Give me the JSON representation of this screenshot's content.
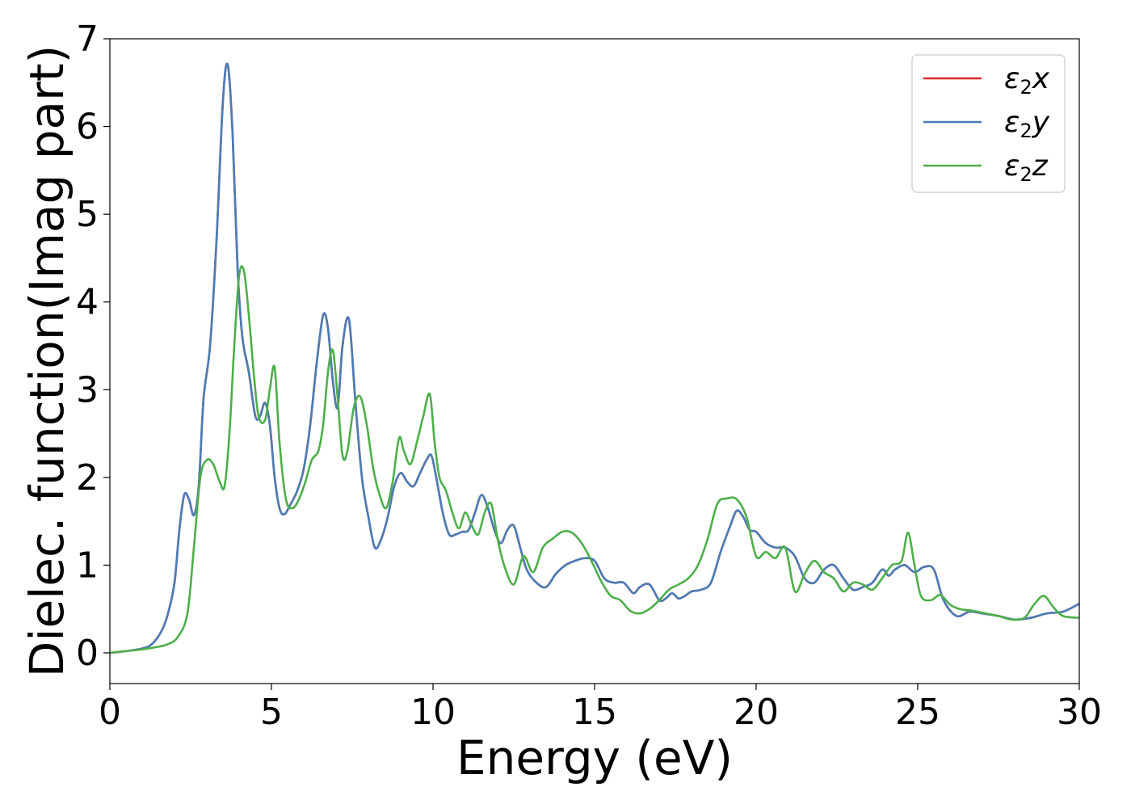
{
  "chart_data": {
    "type": "line",
    "xlabel": "Energy (eV)",
    "ylabel": "Dielec. function(Imag part)",
    "xlim": [
      0,
      30
    ],
    "ylim": [
      -0.35,
      7
    ],
    "xticks": [
      0,
      5,
      10,
      15,
      20,
      25,
      30
    ],
    "yticks": [
      0,
      1,
      2,
      3,
      4,
      5,
      6,
      7
    ],
    "grid": false,
    "legend_position": "top-right",
    "series": [
      {
        "name": "ε2x",
        "legend_main": "ε",
        "legend_sub": "2",
        "legend_var": "x",
        "color": "#d62728",
        "x": [
          0,
          0.5,
          1,
          1.3,
          1.6,
          1.8,
          2,
          2.15,
          2.3,
          2.45,
          2.6,
          2.75,
          2.9,
          3.1,
          3.3,
          3.5,
          3.65,
          3.8,
          3.95,
          4.1,
          4.3,
          4.5,
          4.65,
          4.8,
          4.95,
          5.1,
          5.25,
          5.4,
          5.6,
          5.8,
          6,
          6.2,
          6.4,
          6.6,
          6.75,
          6.9,
          7.05,
          7.2,
          7.4,
          7.6,
          7.8,
          8,
          8.2,
          8.4,
          8.6,
          8.8,
          9,
          9.2,
          9.4,
          9.6,
          9.8,
          9.95,
          10.1,
          10.3,
          10.5,
          10.7,
          10.9,
          11.1,
          11.3,
          11.5,
          11.7,
          11.9,
          12.1,
          12.3,
          12.5,
          12.7,
          12.9,
          13.2,
          13.5,
          13.8,
          14.1,
          14.4,
          14.7,
          15,
          15.3,
          15.6,
          15.9,
          16.2,
          16.4,
          16.7,
          17,
          17.2,
          17.4,
          17.6,
          17.8,
          18,
          18.3,
          18.6,
          18.9,
          19.2,
          19.4,
          19.6,
          19.8,
          20,
          20.3,
          20.6,
          20.9,
          21.2,
          21.5,
          21.8,
          22.1,
          22.4,
          22.7,
          23,
          23.3,
          23.6,
          23.9,
          24.1,
          24.3,
          24.6,
          24.9,
          25.2,
          25.5,
          25.8,
          26.2,
          26.6,
          27,
          27.5,
          28,
          28.5,
          29,
          29.5,
          30
        ],
        "y": [
          0,
          0.02,
          0.05,
          0.1,
          0.25,
          0.45,
          0.8,
          1.4,
          1.8,
          1.75,
          1.57,
          1.9,
          2.9,
          3.5,
          4.7,
          6.3,
          6.7,
          5.9,
          4.4,
          3.6,
          3.2,
          2.7,
          2.7,
          2.85,
          2.6,
          2.0,
          1.65,
          1.58,
          1.7,
          1.85,
          2.1,
          2.6,
          3.3,
          3.85,
          3.7,
          3.1,
          2.8,
          3.5,
          3.8,
          2.85,
          2.0,
          1.55,
          1.2,
          1.3,
          1.55,
          1.9,
          2.05,
          1.95,
          1.9,
          2.05,
          2.2,
          2.25,
          2.0,
          1.6,
          1.35,
          1.35,
          1.38,
          1.4,
          1.6,
          1.8,
          1.65,
          1.4,
          1.25,
          1.4,
          1.45,
          1.2,
          0.95,
          0.8,
          0.75,
          0.9,
          1.0,
          1.05,
          1.08,
          1.05,
          0.85,
          0.8,
          0.8,
          0.68,
          0.75,
          0.78,
          0.6,
          0.62,
          0.68,
          0.62,
          0.65,
          0.7,
          0.72,
          0.8,
          1.15,
          1.45,
          1.62,
          1.55,
          1.4,
          1.38,
          1.25,
          1.2,
          1.2,
          1.1,
          0.85,
          0.8,
          0.95,
          1.0,
          0.85,
          0.72,
          0.75,
          0.8,
          0.95,
          0.88,
          0.95,
          1.0,
          0.92,
          0.98,
          0.95,
          0.6,
          0.42,
          0.47,
          0.45,
          0.42,
          0.38,
          0.4,
          0.45,
          0.47,
          0.56
        ]
      },
      {
        "name": "ε2y",
        "legend_main": "ε",
        "legend_sub": "2",
        "legend_var": "y",
        "color": "#4a7db7",
        "x": [
          0,
          0.5,
          1,
          1.3,
          1.6,
          1.8,
          2,
          2.15,
          2.3,
          2.45,
          2.6,
          2.75,
          2.9,
          3.1,
          3.3,
          3.5,
          3.65,
          3.8,
          3.95,
          4.1,
          4.3,
          4.5,
          4.65,
          4.8,
          4.95,
          5.1,
          5.25,
          5.4,
          5.6,
          5.8,
          6,
          6.2,
          6.4,
          6.6,
          6.75,
          6.9,
          7.05,
          7.2,
          7.4,
          7.6,
          7.8,
          8,
          8.2,
          8.4,
          8.6,
          8.8,
          9,
          9.2,
          9.4,
          9.6,
          9.8,
          9.95,
          10.1,
          10.3,
          10.5,
          10.7,
          10.9,
          11.1,
          11.3,
          11.5,
          11.7,
          11.9,
          12.1,
          12.3,
          12.5,
          12.7,
          12.9,
          13.2,
          13.5,
          13.8,
          14.1,
          14.4,
          14.7,
          15,
          15.3,
          15.6,
          15.9,
          16.2,
          16.4,
          16.7,
          17,
          17.2,
          17.4,
          17.6,
          17.8,
          18,
          18.3,
          18.6,
          18.9,
          19.2,
          19.4,
          19.6,
          19.8,
          20,
          20.3,
          20.6,
          20.9,
          21.2,
          21.5,
          21.8,
          22.1,
          22.4,
          22.7,
          23,
          23.3,
          23.6,
          23.9,
          24.1,
          24.3,
          24.6,
          24.9,
          25.2,
          25.5,
          25.8,
          26.2,
          26.6,
          27,
          27.5,
          28,
          28.5,
          29,
          29.5,
          30
        ],
        "y": [
          0,
          0.02,
          0.05,
          0.1,
          0.25,
          0.45,
          0.8,
          1.4,
          1.8,
          1.75,
          1.57,
          1.9,
          2.9,
          3.5,
          4.7,
          6.3,
          6.7,
          5.9,
          4.4,
          3.6,
          3.2,
          2.7,
          2.7,
          2.85,
          2.6,
          2.0,
          1.65,
          1.58,
          1.7,
          1.85,
          2.1,
          2.6,
          3.3,
          3.85,
          3.7,
          3.1,
          2.8,
          3.5,
          3.8,
          2.85,
          2.0,
          1.55,
          1.2,
          1.3,
          1.55,
          1.9,
          2.05,
          1.95,
          1.9,
          2.05,
          2.2,
          2.25,
          2.0,
          1.6,
          1.35,
          1.35,
          1.38,
          1.4,
          1.6,
          1.8,
          1.65,
          1.4,
          1.25,
          1.4,
          1.45,
          1.2,
          0.95,
          0.8,
          0.75,
          0.9,
          1.0,
          1.05,
          1.08,
          1.05,
          0.85,
          0.8,
          0.8,
          0.68,
          0.75,
          0.78,
          0.6,
          0.62,
          0.68,
          0.62,
          0.65,
          0.7,
          0.72,
          0.8,
          1.15,
          1.45,
          1.62,
          1.55,
          1.4,
          1.38,
          1.25,
          1.2,
          1.2,
          1.1,
          0.85,
          0.8,
          0.95,
          1.0,
          0.85,
          0.72,
          0.75,
          0.8,
          0.95,
          0.88,
          0.95,
          1.0,
          0.92,
          0.98,
          0.95,
          0.6,
          0.42,
          0.47,
          0.45,
          0.42,
          0.38,
          0.4,
          0.45,
          0.47,
          0.56
        ]
      },
      {
        "name": "ε2z",
        "legend_main": "ε",
        "legend_sub": "2",
        "legend_var": "z",
        "color": "#4daf4a",
        "x": [
          0,
          0.5,
          1,
          1.5,
          1.8,
          2.1,
          2.4,
          2.6,
          2.8,
          3,
          3.2,
          3.4,
          3.55,
          3.7,
          3.85,
          4,
          4.15,
          4.3,
          4.45,
          4.6,
          4.8,
          4.95,
          5.1,
          5.25,
          5.45,
          5.65,
          5.85,
          6.05,
          6.25,
          6.45,
          6.6,
          6.75,
          6.9,
          7.05,
          7.2,
          7.35,
          7.55,
          7.75,
          7.95,
          8.15,
          8.35,
          8.55,
          8.75,
          8.95,
          9.1,
          9.3,
          9.5,
          9.7,
          9.9,
          10.05,
          10.2,
          10.4,
          10.6,
          10.8,
          11,
          11.2,
          11.4,
          11.6,
          11.8,
          12,
          12.2,
          12.5,
          12.8,
          13.1,
          13.4,
          13.7,
          14,
          14.3,
          14.6,
          14.9,
          15.2,
          15.5,
          15.8,
          16.1,
          16.4,
          16.7,
          17,
          17.3,
          17.6,
          17.9,
          18.2,
          18.5,
          18.8,
          19.1,
          19.4,
          19.7,
          20,
          20.3,
          20.6,
          20.9,
          21.2,
          21.5,
          21.8,
          22.1,
          22.4,
          22.7,
          23,
          23.3,
          23.6,
          23.9,
          24.2,
          24.5,
          24.7,
          24.9,
          25.1,
          25.4,
          25.7,
          26,
          26.3,
          26.7,
          27.1,
          27.5,
          27.9,
          28.3,
          28.6,
          28.9,
          29.2,
          29.5,
          30
        ],
        "y": [
          0,
          0.02,
          0.04,
          0.07,
          0.1,
          0.18,
          0.45,
          1.2,
          2.0,
          2.2,
          2.15,
          1.95,
          1.9,
          2.5,
          3.5,
          4.3,
          4.35,
          3.85,
          3.2,
          2.7,
          2.65,
          3.0,
          3.25,
          2.4,
          1.75,
          1.65,
          1.75,
          1.95,
          2.2,
          2.3,
          2.6,
          3.2,
          3.45,
          2.9,
          2.25,
          2.3,
          2.8,
          2.92,
          2.6,
          2.1,
          1.8,
          1.65,
          1.95,
          2.45,
          2.3,
          2.15,
          2.4,
          2.7,
          2.95,
          2.4,
          2.0,
          1.85,
          1.6,
          1.42,
          1.6,
          1.45,
          1.35,
          1.6,
          1.7,
          1.3,
          1.0,
          0.78,
          1.1,
          0.92,
          1.2,
          1.3,
          1.38,
          1.37,
          1.25,
          1.05,
          0.82,
          0.65,
          0.6,
          0.48,
          0.45,
          0.5,
          0.6,
          0.72,
          0.78,
          0.85,
          1.0,
          1.3,
          1.7,
          1.76,
          1.75,
          1.55,
          1.1,
          1.15,
          1.08,
          1.2,
          0.7,
          0.9,
          1.05,
          0.92,
          0.85,
          0.7,
          0.8,
          0.78,
          0.72,
          0.85,
          1.0,
          1.05,
          1.37,
          1.0,
          0.65,
          0.6,
          0.66,
          0.55,
          0.5,
          0.48,
          0.45,
          0.42,
          0.38,
          0.4,
          0.55,
          0.65,
          0.52,
          0.42,
          0.4
        ]
      }
    ]
  }
}
